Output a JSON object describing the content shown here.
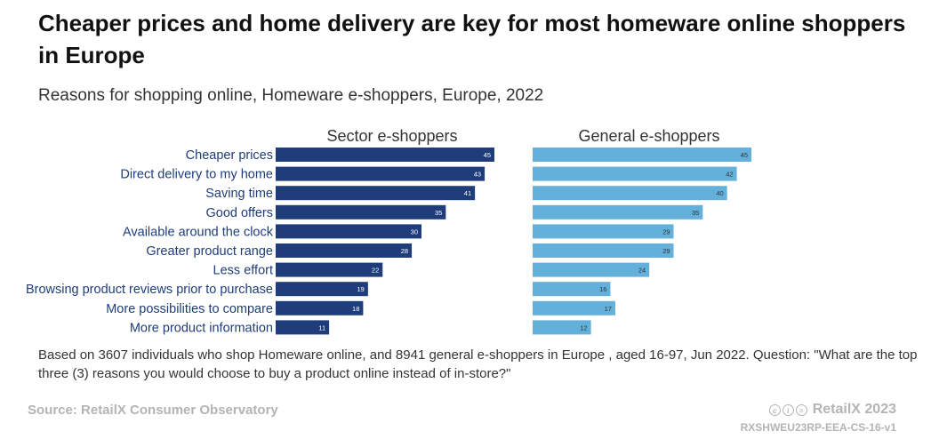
{
  "title": "Cheaper prices and home delivery are key for most homeware online shoppers in Europe",
  "subtitle": "Reasons for shopping online, Homeware e-shoppers, Europe, 2022",
  "note": "Based on 3607 individuals who shop Homeware online, and 8941 general e-shoppers in Europe , aged 16-97, Jun 2022. Question: \"What are the top three (3) reasons you would choose to buy a product online instead of in-store?\"",
  "source": "Source: RetailX Consumer Observatory",
  "brand": "RetailX 2023",
  "code": "RXSHWEU23RP-EEA-CS-16-v1",
  "license_icons": [
    "cc-icon",
    "by-icon",
    "nd-icon"
  ],
  "chart_data": {
    "type": "bar",
    "orientation": "horizontal",
    "categories": [
      "Cheaper prices",
      "Direct delivery to my home",
      "Saving time",
      "Good offers",
      "Available around the clock",
      "Greater product range",
      "Less effort",
      "Browsing product reviews prior to purchase",
      "More possibilities to compare",
      "More product information"
    ],
    "series": [
      {
        "name": "Sector e-shoppers",
        "color": "#1f3d7a",
        "label_color": "#ffffff",
        "values": [
          45,
          43,
          41,
          35,
          30,
          28,
          22,
          19,
          18,
          11
        ]
      },
      {
        "name": "General e-shoppers",
        "color": "#63b0da",
        "label_color": "#333333",
        "values": [
          45,
          42,
          40,
          35,
          29,
          29,
          24,
          16,
          17,
          12
        ]
      }
    ],
    "xlim": [
      0,
      50
    ],
    "grid": false,
    "legend": "panel titles"
  }
}
